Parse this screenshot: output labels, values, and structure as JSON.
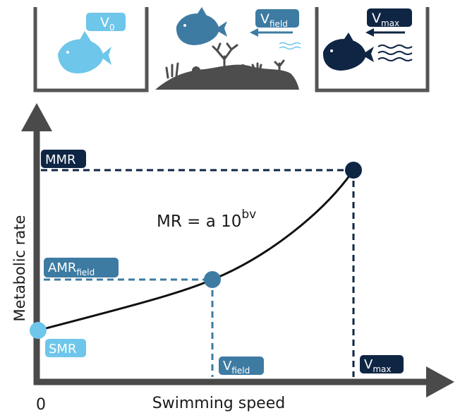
{
  "panels": {
    "v0": {
      "base": "V",
      "sub": "0"
    },
    "vfield": {
      "base": "V",
      "sub": "field"
    },
    "vmax": {
      "base": "V",
      "sub": "max"
    }
  },
  "axes": {
    "y_label": "Metabolic rate",
    "x_label": "Swimming speed",
    "origin": "0"
  },
  "labels": {
    "mmr": "MMR",
    "amr": {
      "base": "AMR",
      "sub": "field"
    },
    "smr": "SMR",
    "vfield": {
      "base": "V",
      "sub": "field"
    },
    "vmax": {
      "base": "V",
      "sub": "max"
    }
  },
  "equation": {
    "base": "MR = a 10",
    "sup": "bv"
  },
  "points": [
    {
      "name": "SMR",
      "color": "#6ec6ea"
    },
    {
      "name": "AMR field",
      "color": "#3d7ba3"
    },
    {
      "name": "MMR",
      "color": "#0f2544"
    }
  ],
  "colors": {
    "light": "#6ec6ea",
    "mid": "#3d7ba3",
    "dark": "#0f2544",
    "axis": "#4a4a4a",
    "reef": "#4d4d4d"
  }
}
